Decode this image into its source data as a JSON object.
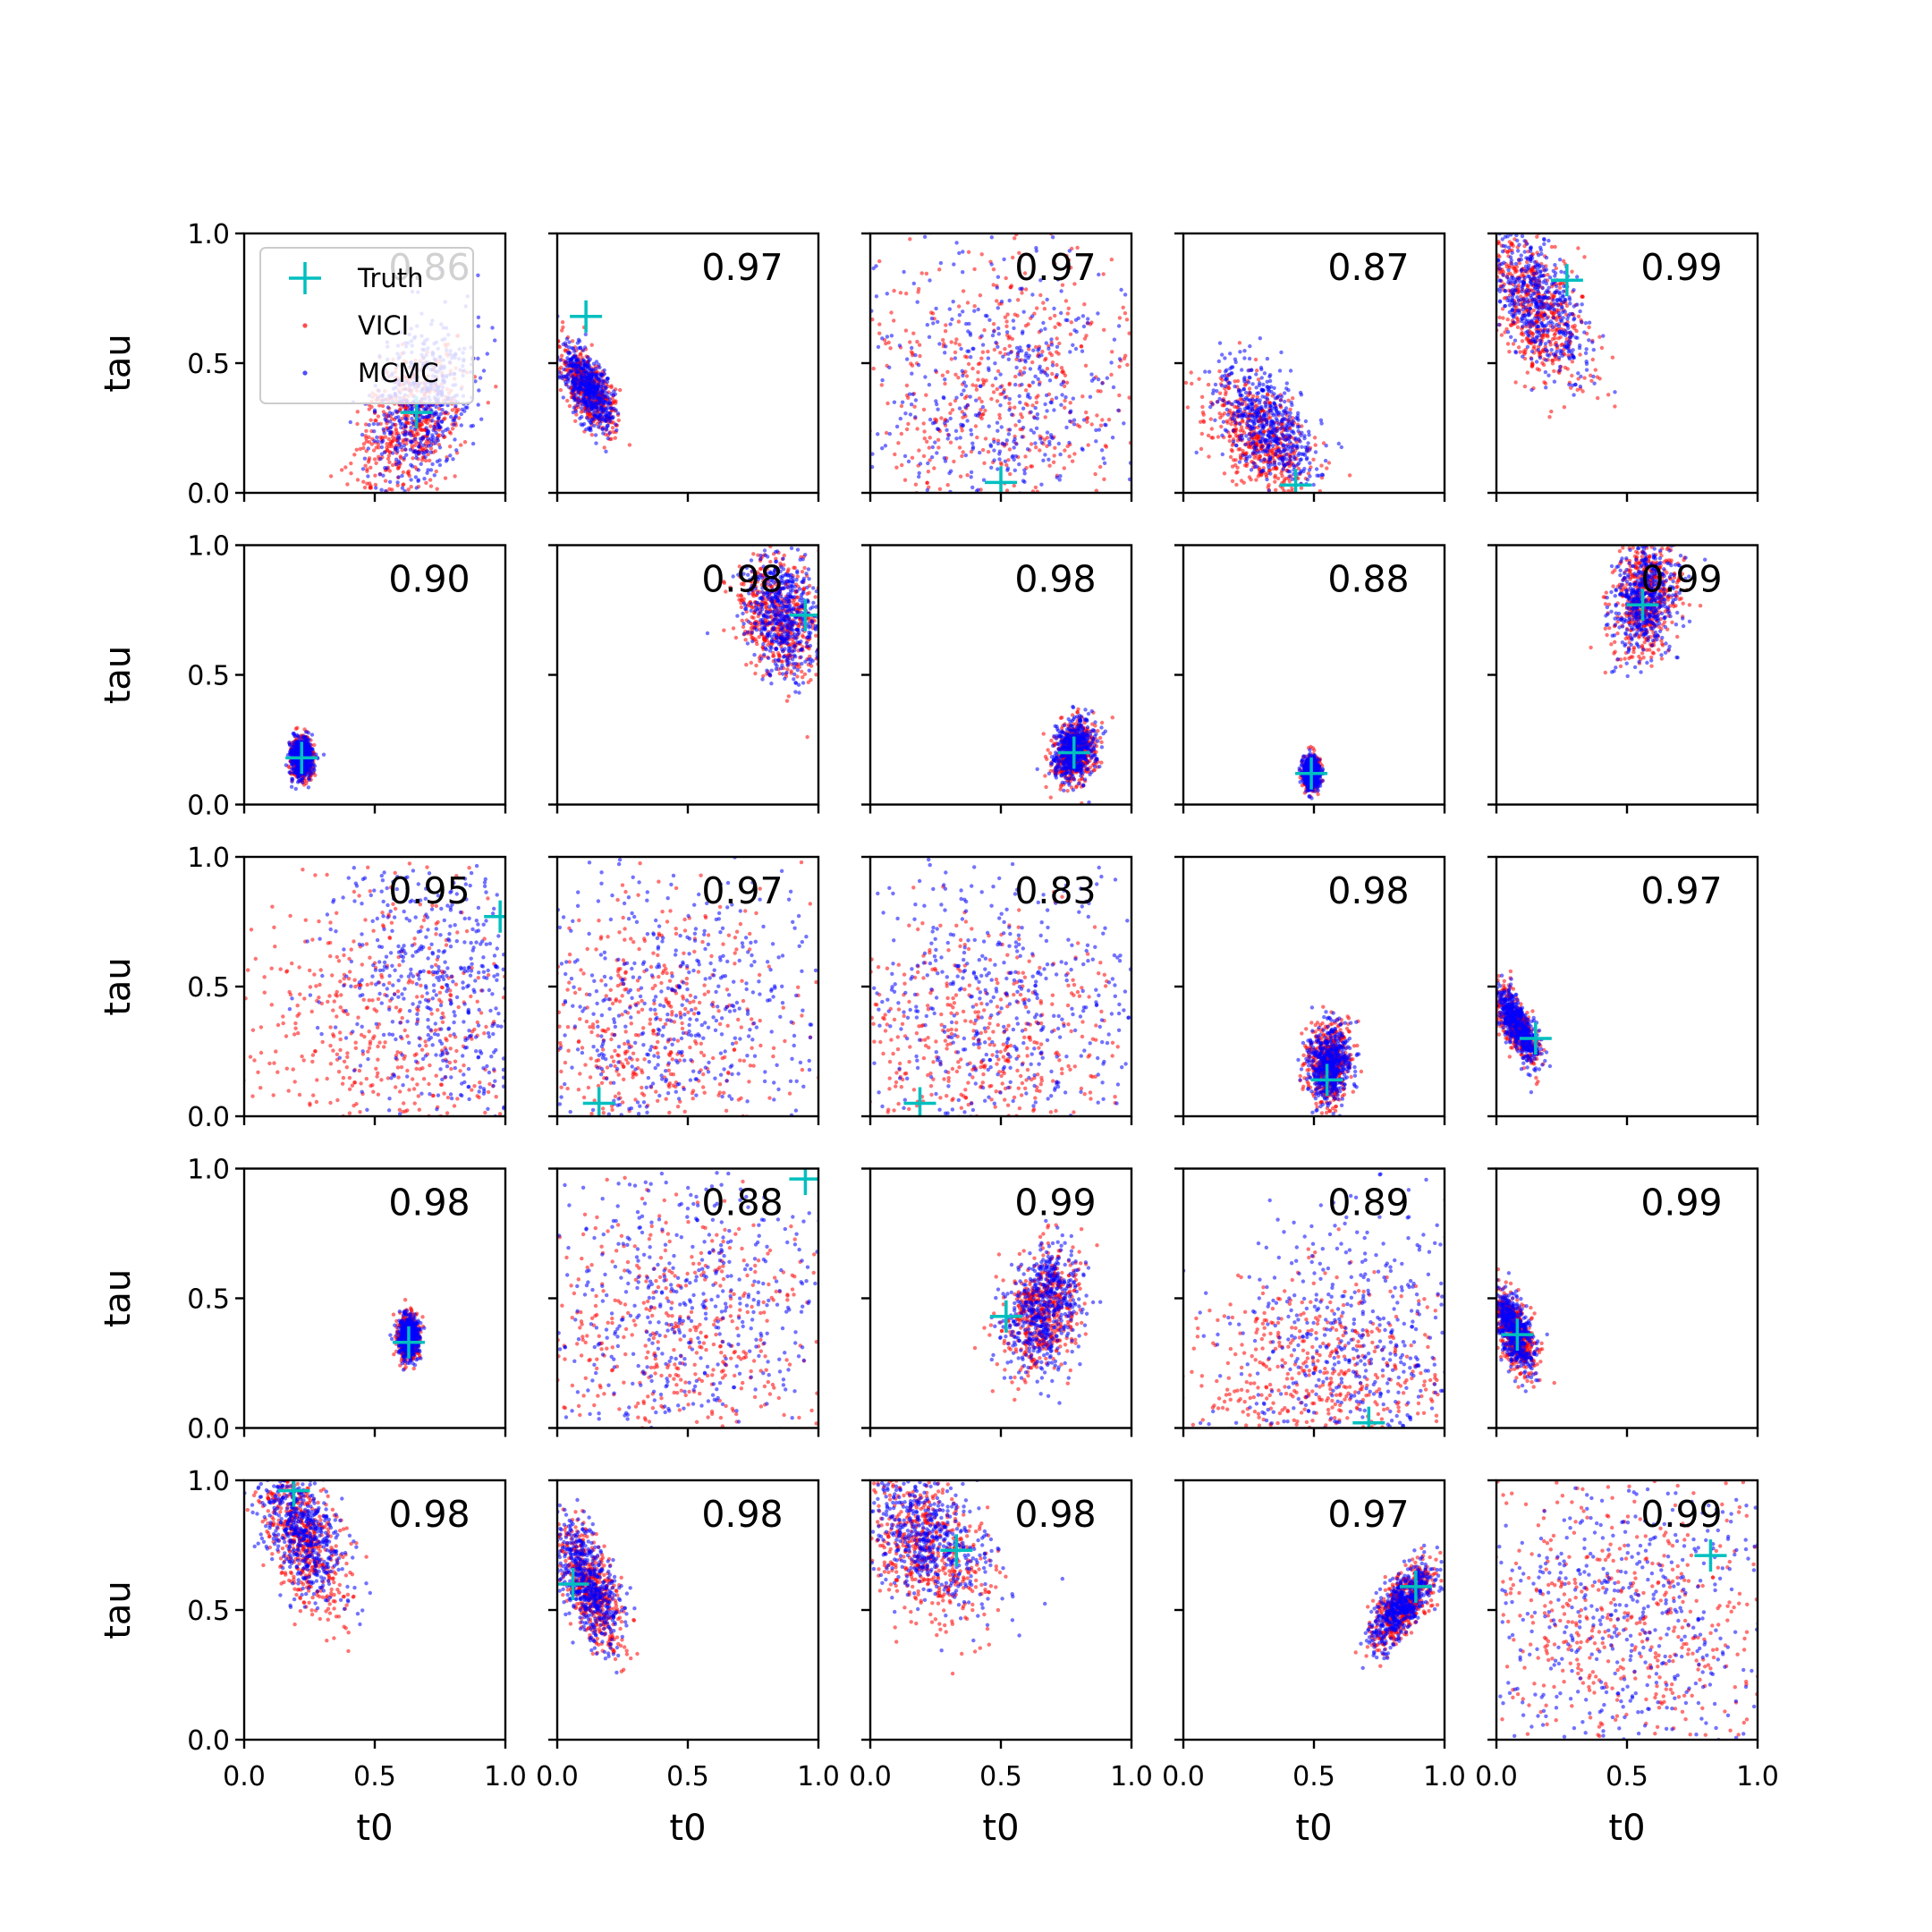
{
  "chart_data": {
    "type": "scatter",
    "grid": "off",
    "rows": 5,
    "cols": 5,
    "xlabel": "t0",
    "ylabel": "tau",
    "xlim": [
      0,
      1
    ],
    "ylim": [
      0,
      1
    ],
    "xticks": [
      "0.0",
      "0.5",
      "1.0"
    ],
    "yticks": [
      "0.0",
      "0.5",
      "1.0"
    ],
    "legend": {
      "placement": "upper-left of first panel",
      "entries": [
        {
          "label": "Truth",
          "marker": "plus",
          "color": "#00bfbf"
        },
        {
          "label": "VICI",
          "marker": "dot",
          "color": "#ff0000"
        },
        {
          "label": "MCMC",
          "marker": "dot",
          "color": "#0000ff"
        }
      ]
    },
    "colors": {
      "vici": "#ff0000",
      "mcmc": "#0000ff",
      "truth": "#00bfbf"
    },
    "panels": [
      {
        "score": "0.86",
        "truth": [
          0.66,
          0.31
        ],
        "vici": {
          "c": [
            0.64,
            0.28
          ],
          "s": [
            0.1,
            0.14
          ],
          "r": 0.3
        },
        "mcmc": {
          "c": [
            0.68,
            0.35
          ],
          "s": [
            0.1,
            0.15
          ],
          "r": 0.3
        }
      },
      {
        "score": "0.97",
        "truth": [
          0.11,
          0.68
        ],
        "vici": {
          "c": [
            0.12,
            0.4
          ],
          "s": [
            0.05,
            0.08
          ],
          "r": -0.6
        },
        "mcmc": {
          "c": [
            0.12,
            0.4
          ],
          "s": [
            0.05,
            0.08
          ],
          "r": -0.6
        }
      },
      {
        "score": "0.97",
        "truth": [
          0.5,
          0.04
        ],
        "vici": {
          "c": [
            0.5,
            0.4
          ],
          "s": [
            0.3,
            0.3
          ],
          "r": 0
        },
        "mcmc": {
          "c": [
            0.5,
            0.35
          ],
          "s": [
            0.28,
            0.3
          ],
          "r": 0
        }
      },
      {
        "score": "0.87",
        "truth": [
          0.43,
          0.03
        ],
        "vici": {
          "c": [
            0.3,
            0.2
          ],
          "s": [
            0.1,
            0.12
          ],
          "r": -0.5
        },
        "mcmc": {
          "c": [
            0.32,
            0.27
          ],
          "s": [
            0.1,
            0.12
          ],
          "r": -0.5
        }
      },
      {
        "score": "0.99",
        "truth": [
          0.27,
          0.82
        ],
        "vici": {
          "c": [
            0.15,
            0.72
          ],
          "s": [
            0.1,
            0.15
          ],
          "r": -0.5
        },
        "mcmc": {
          "c": [
            0.15,
            0.75
          ],
          "s": [
            0.1,
            0.14
          ],
          "r": -0.5
        }
      },
      {
        "score": "0.90",
        "truth": [
          0.22,
          0.18
        ],
        "vici": {
          "c": [
            0.22,
            0.18
          ],
          "s": [
            0.02,
            0.04
          ],
          "r": 0
        },
        "mcmc": {
          "c": [
            0.22,
            0.18
          ],
          "s": [
            0.02,
            0.04
          ],
          "r": 0
        }
      },
      {
        "score": "0.98",
        "truth": [
          0.95,
          0.73
        ],
        "vici": {
          "c": [
            0.85,
            0.72
          ],
          "s": [
            0.08,
            0.12
          ],
          "r": -0.2
        },
        "mcmc": {
          "c": [
            0.86,
            0.74
          ],
          "s": [
            0.07,
            0.12
          ],
          "r": -0.2
        }
      },
      {
        "score": "0.98",
        "truth": [
          0.78,
          0.2
        ],
        "vici": {
          "c": [
            0.78,
            0.2
          ],
          "s": [
            0.04,
            0.06
          ],
          "r": 0.2
        },
        "mcmc": {
          "c": [
            0.78,
            0.21
          ],
          "s": [
            0.04,
            0.06
          ],
          "r": 0.2
        }
      },
      {
        "score": "0.88",
        "truth": [
          0.49,
          0.12
        ],
        "vici": {
          "c": [
            0.49,
            0.12
          ],
          "s": [
            0.015,
            0.03
          ],
          "r": 0
        },
        "mcmc": {
          "c": [
            0.49,
            0.12
          ],
          "s": [
            0.015,
            0.03
          ],
          "r": 0
        }
      },
      {
        "score": "0.99",
        "truth": [
          0.56,
          0.77
        ],
        "vici": {
          "c": [
            0.57,
            0.8
          ],
          "s": [
            0.06,
            0.11
          ],
          "r": 0.2
        },
        "mcmc": {
          "c": [
            0.57,
            0.8
          ],
          "s": [
            0.06,
            0.11
          ],
          "r": 0.2
        }
      },
      {
        "score": "0.95",
        "truth": [
          0.98,
          0.77
        ],
        "vici": {
          "c": [
            0.55,
            0.35
          ],
          "s": [
            0.3,
            0.3
          ],
          "r": -0.2
        },
        "mcmc": {
          "c": [
            0.75,
            0.5
          ],
          "s": [
            0.2,
            0.28
          ],
          "r": -0.3
        }
      },
      {
        "score": "0.97",
        "truth": [
          0.16,
          0.05
        ],
        "vici": {
          "c": [
            0.35,
            0.3
          ],
          "s": [
            0.28,
            0.28
          ],
          "r": 0
        },
        "mcmc": {
          "c": [
            0.45,
            0.4
          ],
          "s": [
            0.3,
            0.3
          ],
          "r": 0
        }
      },
      {
        "score": "0.83",
        "truth": [
          0.19,
          0.05
        ],
        "vici": {
          "c": [
            0.4,
            0.25
          ],
          "s": [
            0.3,
            0.25
          ],
          "r": 0
        },
        "mcmc": {
          "c": [
            0.5,
            0.4
          ],
          "s": [
            0.3,
            0.3
          ],
          "r": 0
        }
      },
      {
        "score": "0.98",
        "truth": [
          0.55,
          0.14
        ],
        "vici": {
          "c": [
            0.56,
            0.2
          ],
          "s": [
            0.04,
            0.08
          ],
          "r": 0.1
        },
        "mcmc": {
          "c": [
            0.56,
            0.2
          ],
          "s": [
            0.04,
            0.07
          ],
          "r": 0.1
        }
      },
      {
        "score": "0.97",
        "truth": [
          0.15,
          0.3
        ],
        "vici": {
          "c": [
            0.08,
            0.35
          ],
          "s": [
            0.04,
            0.07
          ],
          "r": -0.7
        },
        "mcmc": {
          "c": [
            0.08,
            0.35
          ],
          "s": [
            0.04,
            0.07
          ],
          "r": -0.7
        }
      },
      {
        "score": "0.98",
        "truth": [
          0.63,
          0.33
        ],
        "vici": {
          "c": [
            0.63,
            0.35
          ],
          "s": [
            0.02,
            0.04
          ],
          "r": 0
        },
        "mcmc": {
          "c": [
            0.63,
            0.35
          ],
          "s": [
            0.02,
            0.04
          ],
          "r": 0
        }
      },
      {
        "score": "0.88",
        "truth": [
          0.95,
          0.96
        ],
        "vici": {
          "c": [
            0.45,
            0.35
          ],
          "s": [
            0.3,
            0.3
          ],
          "r": 0
        },
        "mcmc": {
          "c": [
            0.5,
            0.45
          ],
          "s": [
            0.3,
            0.3
          ],
          "r": 0
        }
      },
      {
        "score": "0.99",
        "truth": [
          0.52,
          0.43
        ],
        "vici": {
          "c": [
            0.65,
            0.45
          ],
          "s": [
            0.07,
            0.12
          ],
          "r": 0.3
        },
        "mcmc": {
          "c": [
            0.66,
            0.46
          ],
          "s": [
            0.07,
            0.12
          ],
          "r": 0.3
        }
      },
      {
        "score": "0.89",
        "truth": [
          0.71,
          0.02
        ],
        "vici": {
          "c": [
            0.55,
            0.2
          ],
          "s": [
            0.25,
            0.2
          ],
          "r": 0
        },
        "mcmc": {
          "c": [
            0.65,
            0.3
          ],
          "s": [
            0.25,
            0.28
          ],
          "r": 0
        }
      },
      {
        "score": "0.99",
        "truth": [
          0.08,
          0.36
        ],
        "vici": {
          "c": [
            0.07,
            0.37
          ],
          "s": [
            0.04,
            0.08
          ],
          "r": -0.6
        },
        "mcmc": {
          "c": [
            0.07,
            0.37
          ],
          "s": [
            0.04,
            0.08
          ],
          "r": -0.6
        }
      },
      {
        "score": "0.98",
        "truth": [
          0.19,
          0.96
        ],
        "vici": {
          "c": [
            0.22,
            0.78
          ],
          "s": [
            0.08,
            0.14
          ],
          "r": -0.5
        },
        "mcmc": {
          "c": [
            0.22,
            0.8
          ],
          "s": [
            0.08,
            0.13
          ],
          "r": -0.5
        }
      },
      {
        "score": "0.98",
        "truth": [
          0.06,
          0.6
        ],
        "vici": {
          "c": [
            0.12,
            0.6
          ],
          "s": [
            0.06,
            0.12
          ],
          "r": -0.6
        },
        "mcmc": {
          "c": [
            0.12,
            0.6
          ],
          "s": [
            0.06,
            0.12
          ],
          "r": -0.6
        }
      },
      {
        "score": "0.98",
        "truth": [
          0.33,
          0.73
        ],
        "vici": {
          "c": [
            0.22,
            0.75
          ],
          "s": [
            0.12,
            0.15
          ],
          "r": -0.4
        },
        "mcmc": {
          "c": [
            0.22,
            0.78
          ],
          "s": [
            0.12,
            0.14
          ],
          "r": -0.4
        }
      },
      {
        "score": "0.97",
        "truth": [
          0.89,
          0.59
        ],
        "vici": {
          "c": [
            0.84,
            0.52
          ],
          "s": [
            0.06,
            0.08
          ],
          "r": 0.7
        },
        "mcmc": {
          "c": [
            0.84,
            0.52
          ],
          "s": [
            0.06,
            0.08
          ],
          "r": 0.7
        }
      },
      {
        "score": "0.99",
        "truth": [
          0.82,
          0.71
        ],
        "vici": {
          "c": [
            0.5,
            0.45
          ],
          "s": [
            0.3,
            0.3
          ],
          "r": 0
        },
        "mcmc": {
          "c": [
            0.5,
            0.45
          ],
          "s": [
            0.3,
            0.3
          ],
          "r": 0
        }
      }
    ]
  }
}
